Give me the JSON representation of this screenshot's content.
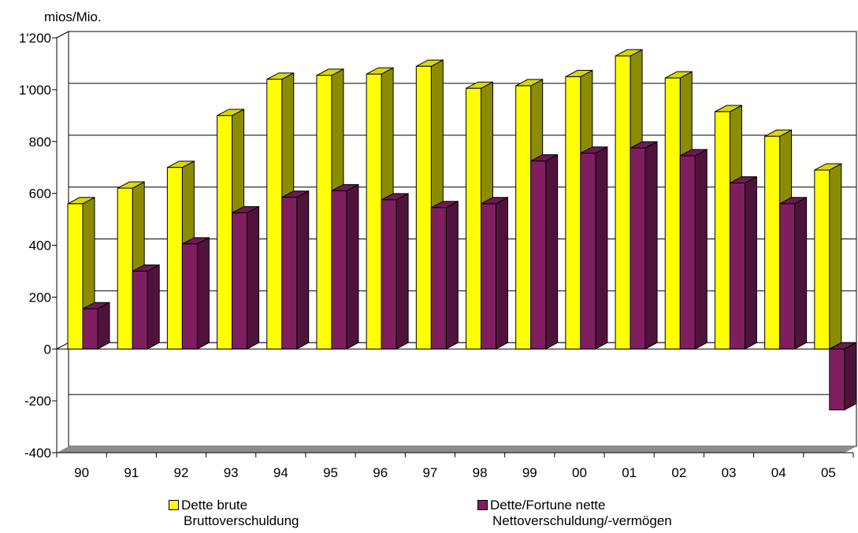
{
  "chart_data": {
    "type": "bar",
    "ylabel": "mios/Mio.",
    "ylim": [
      -400,
      1200
    ],
    "yticks": [
      -400,
      -200,
      0,
      200,
      400,
      600,
      800,
      1000,
      1200
    ],
    "ytick_labels": [
      "-400",
      "-200",
      "0",
      "200",
      "400",
      "600",
      "800",
      "1'000",
      "1'200"
    ],
    "categories": [
      "90",
      "91",
      "92",
      "93",
      "94",
      "95",
      "96",
      "97",
      "98",
      "99",
      "00",
      "01",
      "02",
      "03",
      "04",
      "05"
    ],
    "grid": true,
    "legend_position": "bottom",
    "series": [
      {
        "name": "Dette brute",
        "name2": "Bruttoverschuldung",
        "color": "#ffff00",
        "values": [
          560,
          620,
          700,
          900,
          1040,
          1055,
          1060,
          1090,
          1005,
          1015,
          1050,
          1130,
          1045,
          915,
          820,
          690
        ]
      },
      {
        "name": "Dette/Fortune nette",
        "name2": "Nettoverschuldung/-vermögen",
        "color": "#7f1f5f",
        "values": [
          155,
          300,
          405,
          525,
          585,
          610,
          575,
          545,
          560,
          725,
          755,
          775,
          745,
          640,
          560,
          -235
        ]
      }
    ]
  }
}
